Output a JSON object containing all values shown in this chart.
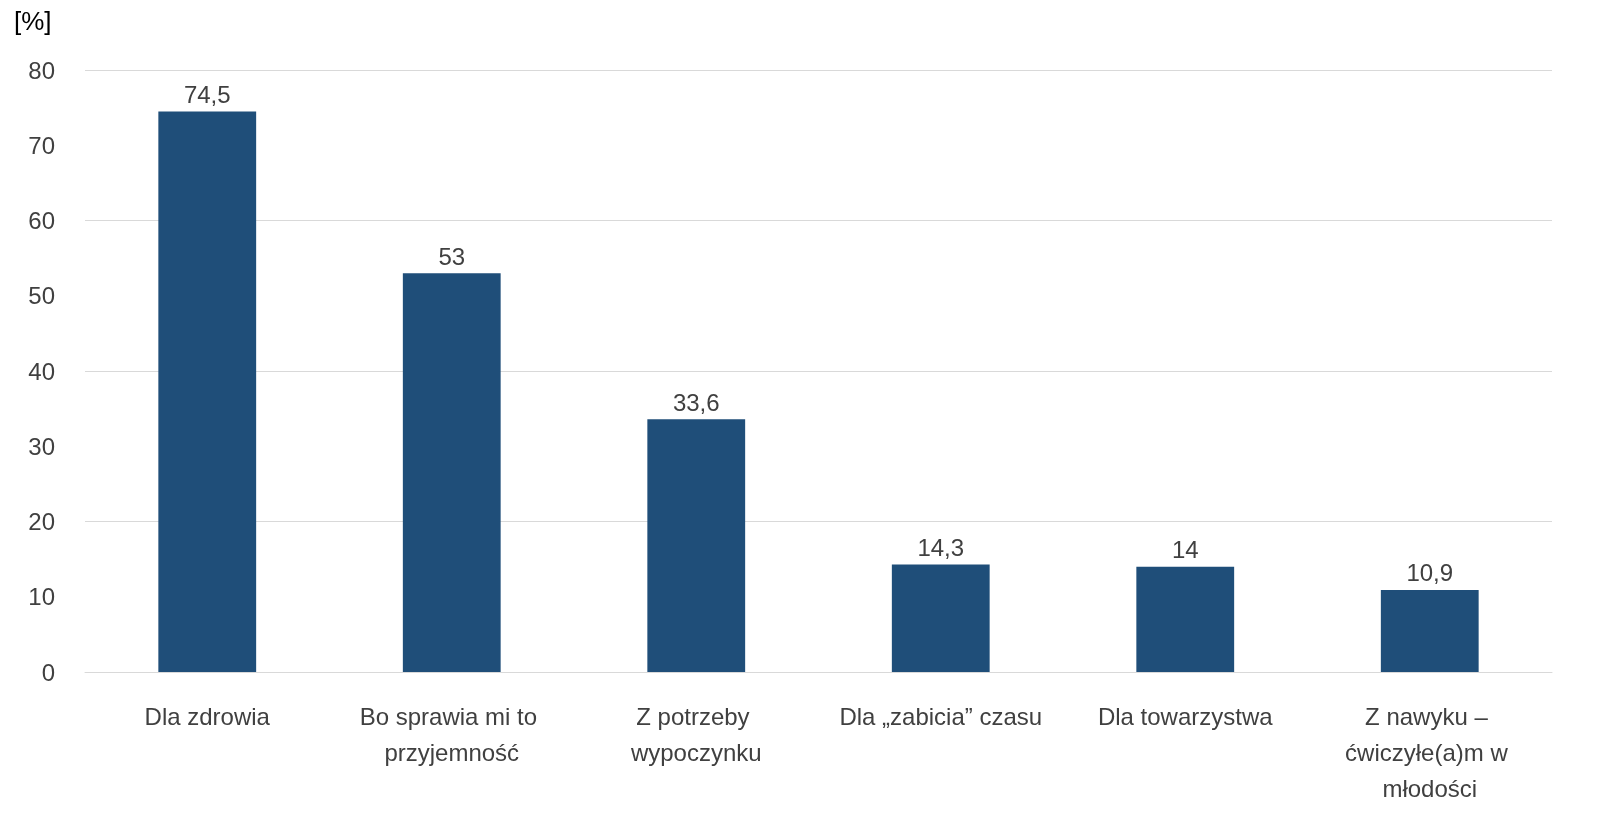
{
  "chart_data": {
    "type": "bar",
    "ylabel": "[%]",
    "categories": [
      "Dla zdrowia",
      "Bo sprawia mi to przyjemność",
      "Z potrzeby wypoczynku",
      "Dla „zabicia” czasu",
      "Dla towarzystwa",
      "Z nawyku – ćwiczyłe(a)m w młodości"
    ],
    "values": [
      74.5,
      53,
      33.6,
      14.3,
      14,
      10.9
    ],
    "value_labels": [
      "74,5",
      "53",
      "33,6",
      "14,3",
      "14",
      "10,9"
    ],
    "color": "#1f4e79",
    "ylim": [
      0,
      80
    ],
    "yticks": [
      0,
      10,
      20,
      30,
      40,
      50,
      60,
      70,
      80
    ],
    "grid": "y"
  }
}
